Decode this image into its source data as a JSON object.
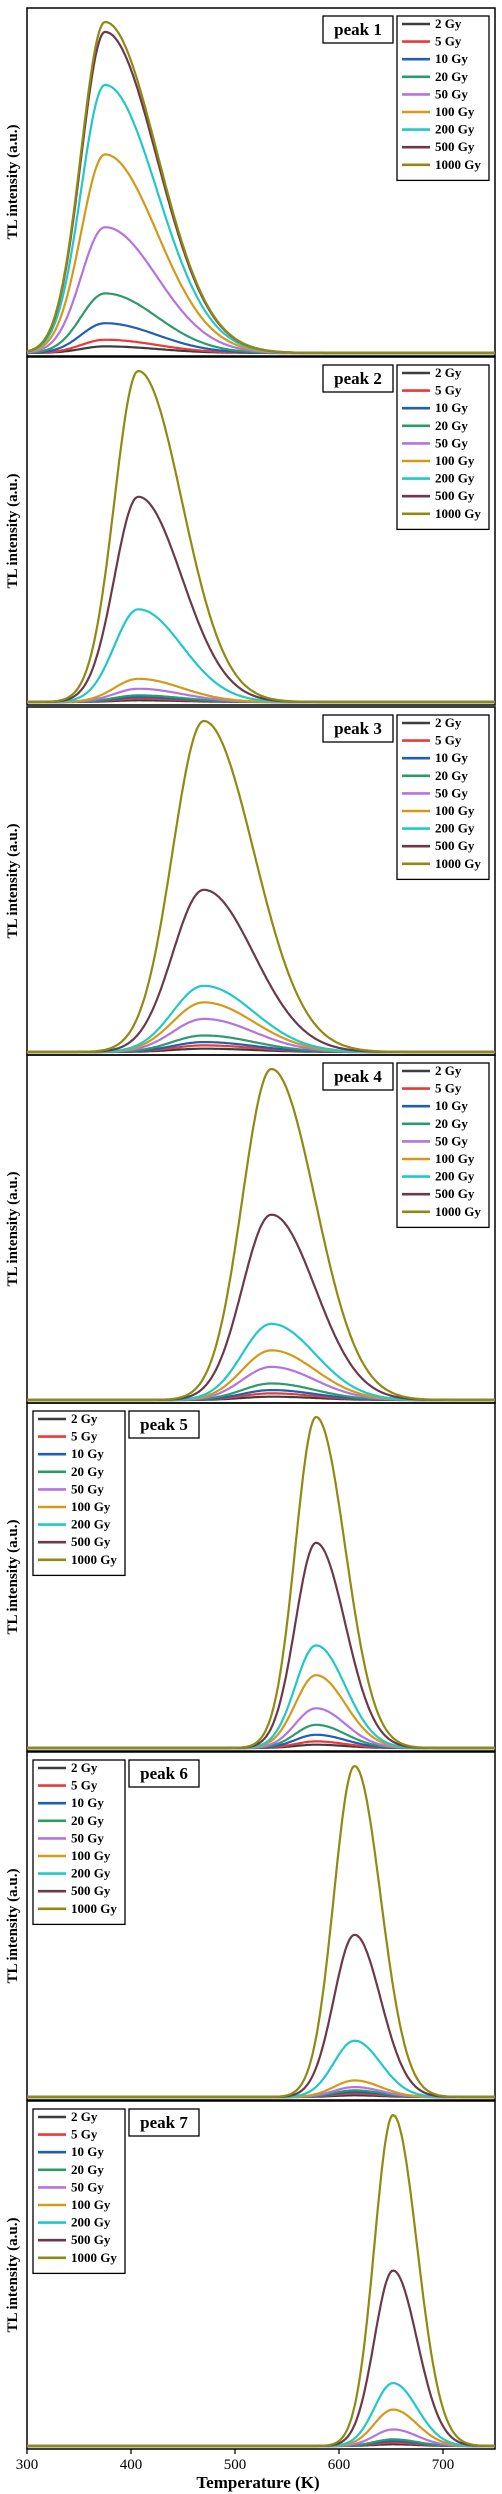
{
  "figure": {
    "ylabel": "TL intensity (a.u.)",
    "xlabel": "Temperature (K)",
    "x_ticks": [
      300,
      400,
      500,
      600,
      700
    ],
    "xlim": [
      300,
      750
    ]
  },
  "legend_doses": [
    "2 Gy",
    "5 Gy",
    "10 Gy",
    "20 Gy",
    "50 Gy",
    "100 Gy",
    "200 Gy",
    "500 Gy",
    "1000 Gy"
  ],
  "colors": {
    "2 Gy": "#3d3d3d",
    "5 Gy": "#e83a3a",
    "10 Gy": "#1f5fb5",
    "20 Gy": "#2e9a6a",
    "50 Gy": "#b374e0",
    "100 Gy": "#d39a1a",
    "200 Gy": "#22c8c8",
    "500 Gy": "#6b3a4a",
    "1000 Gy": "#8f8a12"
  },
  "chart_data": [
    {
      "type": "line",
      "title": "peak 1",
      "legend_position": "top-right",
      "xlabel": "",
      "ylabel": "TL intensity (a.u.)",
      "xlim": [
        300,
        750
      ],
      "peak_temperature_K": 375,
      "width_left_K": 23,
      "width_right_K": 50,
      "series": [
        {
          "name": "2 Gy",
          "peak_value": 0.02
        },
        {
          "name": "5 Gy",
          "peak_value": 0.04
        },
        {
          "name": "10 Gy",
          "peak_value": 0.09
        },
        {
          "name": "20 Gy",
          "peak_value": 0.18
        },
        {
          "name": "50 Gy",
          "peak_value": 0.38
        },
        {
          "name": "100 Gy",
          "peak_value": 0.6
        },
        {
          "name": "200 Gy",
          "peak_value": 0.81
        },
        {
          "name": "500 Gy",
          "peak_value": 0.97
        },
        {
          "name": "1000 Gy",
          "peak_value": 1.0
        }
      ]
    },
    {
      "type": "line",
      "title": "peak 2",
      "legend_position": "top-right",
      "xlabel": "",
      "ylabel": "TL intensity (a.u.)",
      "xlim": [
        300,
        750
      ],
      "peak_temperature_K": 407,
      "width_left_K": 23,
      "width_right_K": 42,
      "series": [
        {
          "name": "2 Gy",
          "peak_value": 0.005
        },
        {
          "name": "5 Gy",
          "peak_value": 0.01
        },
        {
          "name": "10 Gy",
          "peak_value": 0.015
        },
        {
          "name": "20 Gy",
          "peak_value": 0.02
        },
        {
          "name": "50 Gy",
          "peak_value": 0.04
        },
        {
          "name": "100 Gy",
          "peak_value": 0.07
        },
        {
          "name": "200 Gy",
          "peak_value": 0.28
        },
        {
          "name": "500 Gy",
          "peak_value": 0.62
        },
        {
          "name": "1000 Gy",
          "peak_value": 1.0
        }
      ]
    },
    {
      "type": "line",
      "title": "peak 3",
      "legend_position": "top-right",
      "xlabel": "",
      "ylabel": "TL intensity (a.u.)",
      "xlim": [
        300,
        750
      ],
      "peak_temperature_K": 470,
      "width_left_K": 30,
      "width_right_K": 48,
      "series": [
        {
          "name": "2 Gy",
          "peak_value": 0.01
        },
        {
          "name": "5 Gy",
          "peak_value": 0.02
        },
        {
          "name": "10 Gy",
          "peak_value": 0.03
        },
        {
          "name": "20 Gy",
          "peak_value": 0.05
        },
        {
          "name": "50 Gy",
          "peak_value": 0.1
        },
        {
          "name": "100 Gy",
          "peak_value": 0.15
        },
        {
          "name": "200 Gy",
          "peak_value": 0.2
        },
        {
          "name": "500 Gy",
          "peak_value": 0.49
        },
        {
          "name": "1000 Gy",
          "peak_value": 1.0
        }
      ]
    },
    {
      "type": "line",
      "title": "peak 4",
      "legend_position": "top-right",
      "xlabel": "",
      "ylabel": "TL intensity (a.u.)",
      "xlim": [
        300,
        750
      ],
      "peak_temperature_K": 535,
      "width_left_K": 28,
      "width_right_K": 42,
      "series": [
        {
          "name": "2 Gy",
          "peak_value": 0.01
        },
        {
          "name": "5 Gy",
          "peak_value": 0.02
        },
        {
          "name": "10 Gy",
          "peak_value": 0.03
        },
        {
          "name": "20 Gy",
          "peak_value": 0.05
        },
        {
          "name": "50 Gy",
          "peak_value": 0.1
        },
        {
          "name": "100 Gy",
          "peak_value": 0.15
        },
        {
          "name": "200 Gy",
          "peak_value": 0.23
        },
        {
          "name": "500 Gy",
          "peak_value": 0.56
        },
        {
          "name": "1000 Gy",
          "peak_value": 1.0
        }
      ]
    },
    {
      "type": "line",
      "title": "peak 5",
      "legend_position": "top-left",
      "xlabel": "",
      "ylabel": "TL intensity (a.u.)",
      "xlim": [
        300,
        750
      ],
      "peak_temperature_K": 578,
      "width_left_K": 20,
      "width_right_K": 28,
      "series": [
        {
          "name": "2 Gy",
          "peak_value": 0.01
        },
        {
          "name": "5 Gy",
          "peak_value": 0.02
        },
        {
          "name": "10 Gy",
          "peak_value": 0.04
        },
        {
          "name": "20 Gy",
          "peak_value": 0.07
        },
        {
          "name": "50 Gy",
          "peak_value": 0.12
        },
        {
          "name": "100 Gy",
          "peak_value": 0.22
        },
        {
          "name": "200 Gy",
          "peak_value": 0.31
        },
        {
          "name": "500 Gy",
          "peak_value": 0.62
        },
        {
          "name": "1000 Gy",
          "peak_value": 1.0
        }
      ]
    },
    {
      "type": "line",
      "title": "peak 6",
      "legend_position": "top-left",
      "xlabel": "",
      "ylabel": "TL intensity (a.u.)",
      "xlim": [
        300,
        750
      ],
      "peak_temperature_K": 615,
      "width_left_K": 20,
      "width_right_K": 25,
      "series": [
        {
          "name": "2 Gy",
          "peak_value": 0.005
        },
        {
          "name": "5 Gy",
          "peak_value": 0.01
        },
        {
          "name": "10 Gy",
          "peak_value": 0.015
        },
        {
          "name": "20 Gy",
          "peak_value": 0.02
        },
        {
          "name": "50 Gy",
          "peak_value": 0.03
        },
        {
          "name": "100 Gy",
          "peak_value": 0.05
        },
        {
          "name": "200 Gy",
          "peak_value": 0.17
        },
        {
          "name": "500 Gy",
          "peak_value": 0.49
        },
        {
          "name": "1000 Gy",
          "peak_value": 1.0
        }
      ]
    },
    {
      "type": "line",
      "title": "peak 7",
      "legend_position": "top-left",
      "xlabel": "Temperature (K)",
      "ylabel": "TL intensity (a.u.)",
      "xlim": [
        300,
        750
      ],
      "peak_temperature_K": 652,
      "width_left_K": 18,
      "width_right_K": 23,
      "series": [
        {
          "name": "2 Gy",
          "peak_value": 0.005
        },
        {
          "name": "5 Gy",
          "peak_value": 0.01
        },
        {
          "name": "10 Gy",
          "peak_value": 0.015
        },
        {
          "name": "20 Gy",
          "peak_value": 0.02
        },
        {
          "name": "50 Gy",
          "peak_value": 0.05
        },
        {
          "name": "100 Gy",
          "peak_value": 0.11
        },
        {
          "name": "200 Gy",
          "peak_value": 0.19
        },
        {
          "name": "500 Gy",
          "peak_value": 0.53
        },
        {
          "name": "1000 Gy",
          "peak_value": 1.0
        }
      ]
    }
  ]
}
